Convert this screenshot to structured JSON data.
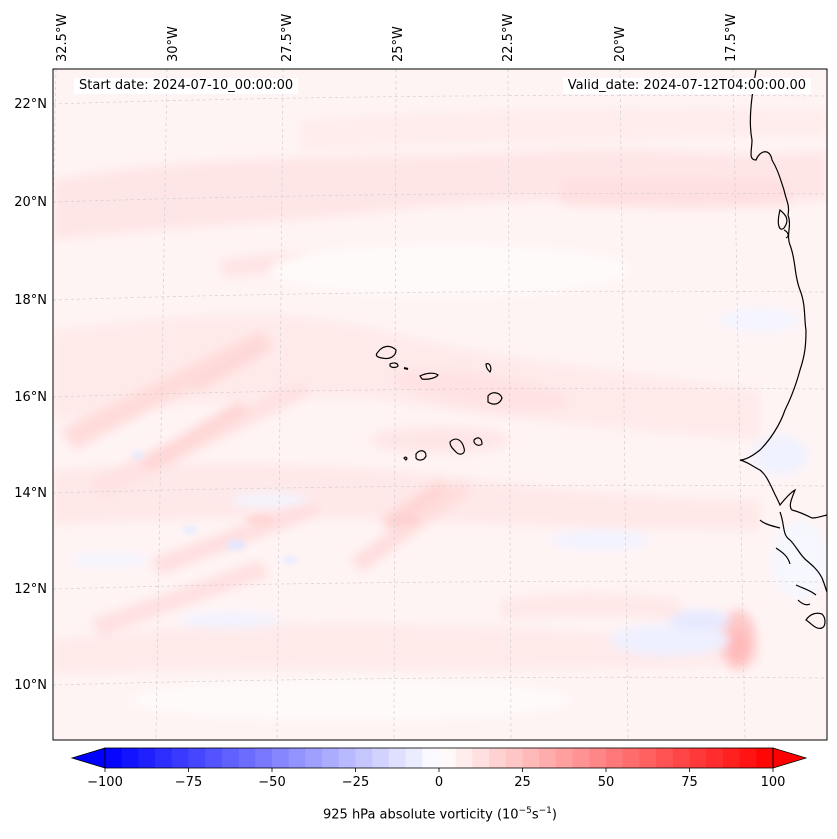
{
  "header": {
    "start_date": "Start date: 2024-07-10_00:00:00",
    "valid_date": "Valid_date: 2024-07-12T04:00:00.00"
  },
  "map": {
    "region": "Eastern Atlantic / West Africa, Cape Verde islands",
    "longitude_labels": [
      "32.5°W",
      "30°W",
      "27.5°W",
      "25°W",
      "22.5°W",
      "20°W",
      "17.5°W"
    ],
    "latitude_labels": [
      "22°N",
      "20°N",
      "18°N",
      "16°N",
      "14°N",
      "12°N",
      "10°N"
    ],
    "field": "925 hPa absolute vorticity",
    "colormap": "bwr",
    "colors": {
      "low": "#0000ff",
      "mid": "#ffffff",
      "high": "#ff0000",
      "coastline": "#000000",
      "gridline": "#cccccc"
    }
  },
  "colorbar": {
    "ticks": [
      "−100",
      "−75",
      "−50",
      "−25",
      "0",
      "25",
      "50",
      "75",
      "100"
    ],
    "tick_values": [
      -100,
      -75,
      -50,
      -25,
      0,
      25,
      50,
      75,
      100
    ],
    "range": [
      -100,
      100
    ],
    "levels": 41,
    "extend": "both",
    "label_main": "925 hPa absolute vorticity (10",
    "label_exp1": "−5",
    "label_mid": "s",
    "label_exp2": "−1",
    "label_end": ")"
  }
}
